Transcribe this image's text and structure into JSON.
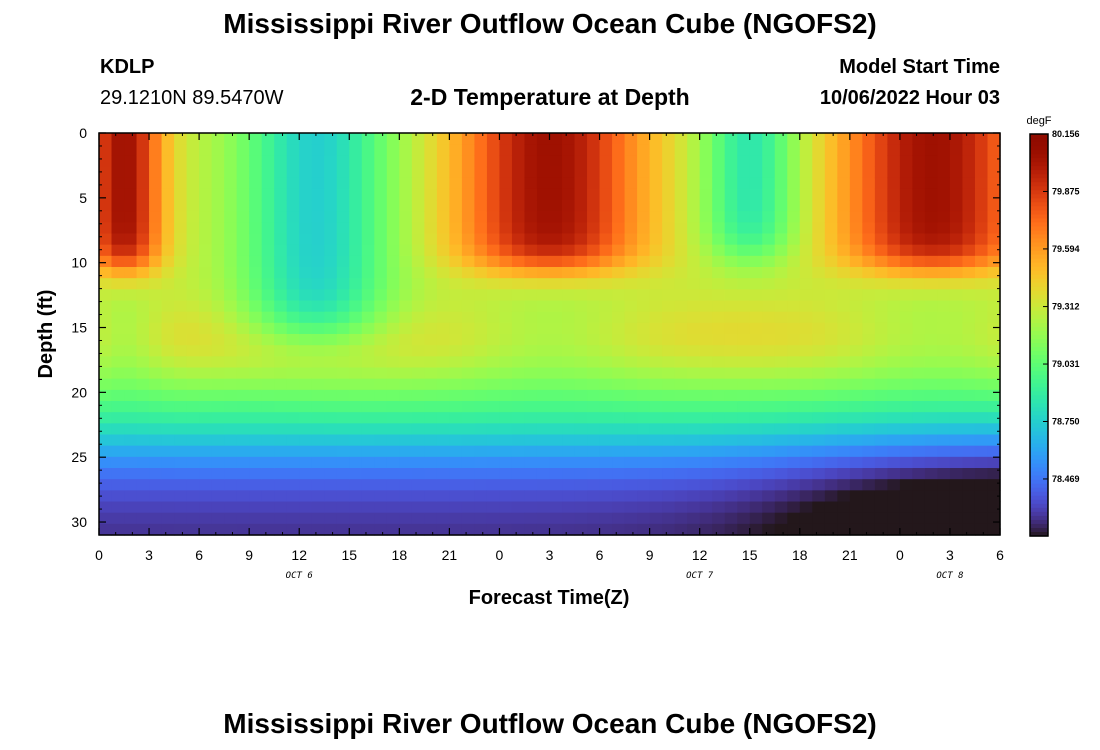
{
  "header": {
    "title": "Mississippi River Outflow Ocean Cube (NGOFS2)",
    "station_id": "KDLP",
    "coordinates": "29.1210N  89.5470W",
    "subtitle": "2-D Temperature at Depth",
    "model_start_label": "Model Start Time",
    "model_start_value": "10/06/2022 Hour 03"
  },
  "footer": {
    "title": "Mississippi River Outflow Ocean Cube (NGOFS2)"
  },
  "chart_data": {
    "type": "heatmap",
    "title": "2-D Temperature at Depth",
    "xlabel": "Forecast Time(Z)",
    "ylabel": "Depth (ft)",
    "x_ticks": [
      "0",
      "3",
      "6",
      "9",
      "12",
      "15",
      "18",
      "21",
      "0",
      "3",
      "6",
      "9",
      "12",
      "15",
      "18",
      "21",
      "0",
      "3",
      "6"
    ],
    "x_range_hours": [
      0,
      54
    ],
    "x_date_labels": [
      {
        "label": "OCT 6",
        "hour": 12
      },
      {
        "label": "OCT 7",
        "hour": 36
      },
      {
        "label": "OCT 8",
        "hour": 51
      }
    ],
    "y_ticks": [
      "0",
      "5",
      "10",
      "15",
      "20",
      "25",
      "30"
    ],
    "y_range_ft": [
      0,
      31
    ],
    "y_inverted": true,
    "colorbar": {
      "unit": "degF",
      "min": 78.19,
      "max": 80.156,
      "labels": [
        "80.156",
        "79.875",
        "79.594",
        "79.312",
        "79.031",
        "78.750",
        "78.469"
      ],
      "colormap": "turbo"
    },
    "field_description": {
      "surface_warm_cores_hours": [
        [
          0,
          4
        ],
        [
          21,
          33
        ],
        [
          44,
          54
        ]
      ],
      "surface_cool_cores_hours": [
        [
          6,
          19
        ],
        [
          35,
          43
        ]
      ],
      "max_value_approx": 80.15,
      "min_value_approx": 78.2
    }
  }
}
